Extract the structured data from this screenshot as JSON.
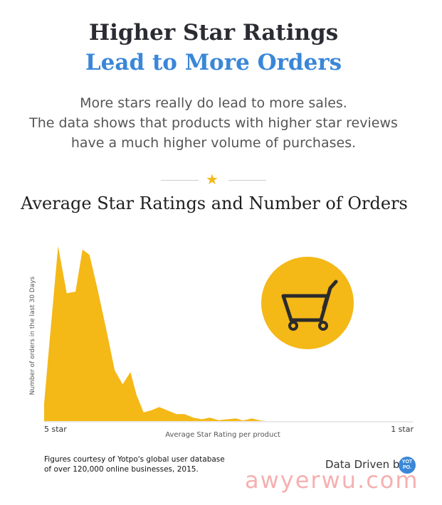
{
  "header": {
    "title_line1": "Higher Star Ratings",
    "title_line2": "Lead to More Orders",
    "subtitle_lines": [
      "More stars really do lead to more sales.",
      "The data shows that products with higher star reviews",
      "have a much higher volume of purchases."
    ]
  },
  "divider_icon": "star-icon",
  "chart_data": {
    "type": "area",
    "title": "Average Star Ratings and Number of Orders",
    "xlabel": "Average Star Rating per product",
    "ylabel": "Number of orders in the last 30 Days",
    "x_tick_labels": [
      "5 star",
      "1 star"
    ],
    "xlim": [
      5,
      1
    ],
    "ylim": [
      0,
      100
    ],
    "x": [
      5.0,
      4.94,
      4.84,
      4.74,
      4.64,
      4.56,
      4.48,
      4.39,
      4.29,
      4.19,
      4.1,
      4.01,
      3.94,
      3.86,
      3.78,
      3.68,
      3.58,
      3.48,
      3.39,
      3.29,
      3.19,
      3.1,
      3.0,
      2.9,
      2.8,
      2.72,
      2.62,
      2.52,
      2.45,
      1.0
    ],
    "values": [
      10,
      44,
      100,
      73,
      74,
      98,
      95,
      76,
      53,
      29,
      21,
      28,
      15,
      5,
      6,
      8,
      6,
      4,
      4,
      2,
      1,
      2,
      0.5,
      1,
      1.5,
      0.3,
      1.5,
      0.3,
      0,
      0
    ],
    "color": "#f4b817",
    "grid": false
  },
  "chart_icon": "shopping-cart-icon",
  "footer": {
    "credit_line1": "Figures courtesy of Yotpo's global user database",
    "credit_line2": "of over 120,000 online businesses, 2015.",
    "data_driven": "Data Driven by",
    "badge_line1": "YOT",
    "badge_line2": "PO."
  },
  "watermark": "awyerwu.com"
}
